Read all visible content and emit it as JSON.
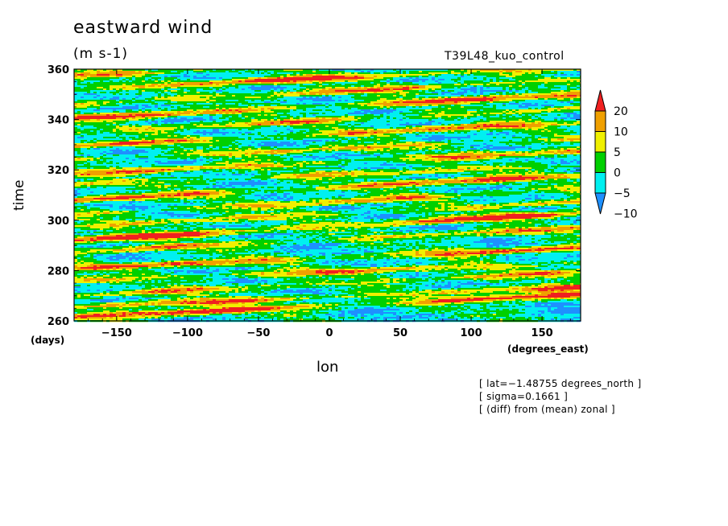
{
  "chart_data": {
    "type": "heatmap",
    "title": "eastward wind",
    "units": "(m s-1)",
    "run_name": "T39L48_kuo_control",
    "xlabel": "lon",
    "xunit_label": "(degrees_east)",
    "ylabel": "time",
    "yunit_label": "(days)",
    "xlim": [
      -180,
      177.2
    ],
    "ylim": [
      260,
      360
    ],
    "xticks": [
      -150,
      -100,
      -50,
      0,
      50,
      100,
      150
    ],
    "xtick_labels": [
      "−150",
      "−100",
      "−50",
      "0",
      "50",
      "100",
      "150"
    ],
    "yticks": [
      260,
      280,
      300,
      320,
      340,
      360
    ],
    "ytick_labels": [
      "260",
      "280",
      "300",
      "320",
      "340",
      "360"
    ],
    "colorbar": {
      "levels": [
        -10,
        -5,
        0,
        5,
        10,
        20
      ],
      "level_labels": [
        "−10",
        "−5",
        "0",
        "5",
        "10",
        "20"
      ],
      "colors": [
        "#1e90ff",
        "#00f0f0",
        "#00d000",
        "#f0f000",
        "#f0a000",
        "#f02020"
      ],
      "extend": "both"
    },
    "ridges": [
      {
        "y_at_minus180": 261.5,
        "y_at_180": 270.5,
        "strength": 24
      },
      {
        "y_at_minus180": 265.5,
        "y_at_180": 273.5,
        "strength": 18
      },
      {
        "y_at_minus180": 270.0,
        "y_at_180": 279.5,
        "strength": 14
      },
      {
        "y_at_minus180": 276.0,
        "y_at_180": 283.0,
        "strength": 17
      },
      {
        "y_at_minus180": 281.0,
        "y_at_180": 289.0,
        "strength": 20
      },
      {
        "y_at_minus180": 287.5,
        "y_at_180": 297.0,
        "strength": 15
      },
      {
        "y_at_minus180": 292.0,
        "y_at_180": 303.0,
        "strength": 24
      },
      {
        "y_at_minus180": 297.5,
        "y_at_180": 307.5,
        "strength": 13
      },
      {
        "y_at_minus180": 302.0,
        "y_at_180": 312.5,
        "strength": 16
      },
      {
        "y_at_minus180": 308.0,
        "y_at_180": 318.0,
        "strength": 21
      },
      {
        "y_at_minus180": 314.0,
        "y_at_180": 322.0,
        "strength": 13
      },
      {
        "y_at_minus180": 318.5,
        "y_at_180": 327.5,
        "strength": 17
      },
      {
        "y_at_minus180": 324.0,
        "y_at_180": 332.5,
        "strength": 14
      },
      {
        "y_at_minus180": 329.5,
        "y_at_180": 339.0,
        "strength": 19
      },
      {
        "y_at_minus180": 335.0,
        "y_at_180": 344.5,
        "strength": 15
      },
      {
        "y_at_minus180": 340.5,
        "y_at_180": 350.0,
        "strength": 22
      },
      {
        "y_at_minus180": 346.0,
        "y_at_180": 356.0,
        "strength": 17
      },
      {
        "y_at_minus180": 352.0,
        "y_at_180": 361.0,
        "strength": 23
      },
      {
        "y_at_minus180": 357.5,
        "y_at_180": 366.0,
        "strength": 15
      }
    ]
  },
  "annotations": [
    "[ lat=−1.48755 degrees_north ]",
    "[ sigma=0.1661 ]",
    "[ (diff) from (mean) zonal ]"
  ]
}
